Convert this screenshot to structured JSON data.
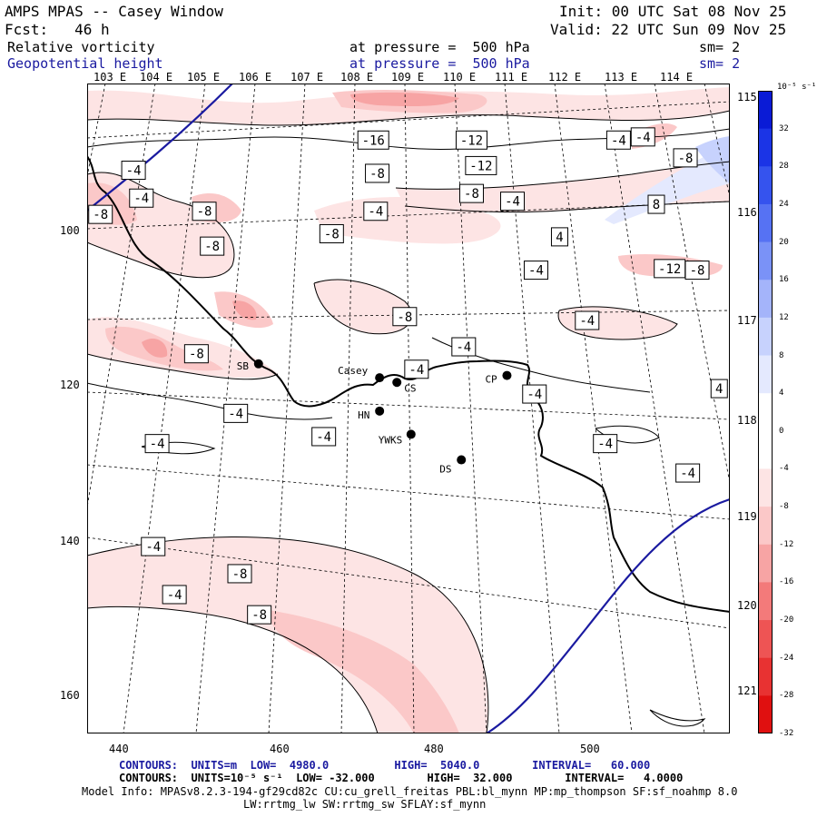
{
  "header": {
    "title": "AMPS MPAS -- Casey Window",
    "init": "Init: 00 UTC Sat 08 Nov 25",
    "forecast": "Fcst:   46 h",
    "valid": "Valid: 22 UTC Sun 09 Nov 25",
    "field1": {
      "name": "Relative vorticity",
      "level": "at pressure =  500 hPa",
      "smooth": "sm= 2"
    },
    "field2": {
      "name": "Geopotential height",
      "level": "at pressure =  500 hPa",
      "smooth": "sm= 2"
    }
  },
  "top_lon_labels": [
    "103 E",
    "104 E",
    "105 E",
    "106 E",
    "107 E",
    "108 E",
    "109 E",
    "110 E",
    "111 E",
    "112 E",
    "113 E",
    "114 E"
  ],
  "right_lat_labels": [
    "115 E",
    "116 E",
    "117 E",
    "118 E",
    "119 E",
    "120 E",
    "121 E"
  ],
  "x_axis": {
    "ticks": [
      "440",
      "460",
      "480",
      "500"
    ]
  },
  "y_axis": {
    "ticks": [
      "100",
      "120",
      "140",
      "160"
    ]
  },
  "colorbar": {
    "units": "10⁻⁵ s⁻¹",
    "labels": [
      "32",
      "28",
      "24",
      "20",
      "16",
      "12",
      "8",
      "4",
      "0",
      "-4",
      "-8",
      "-12",
      "-16",
      "-20",
      "-24",
      "-28",
      "-32"
    ],
    "colors": [
      "#0a1bd6",
      "#1b34e6",
      "#3553ee",
      "#5672f3",
      "#7a92f7",
      "#a4b4fa",
      "#c7d2fd",
      "#e4e9fe",
      "#ffffff",
      "#ffffff",
      "#fde4e4",
      "#fbc8c8",
      "#f7a4a4",
      "#f37a7a",
      "#ee5454",
      "#e83232",
      "#e01010"
    ]
  },
  "stations": [
    {
      "name": "SB",
      "x": 456.9,
      "y": 117.6
    },
    {
      "name": "Casey",
      "x": 472.3,
      "y": 119.4
    },
    {
      "name": "CS",
      "x": 474.5,
      "y": 120.0
    },
    {
      "name": "CP",
      "x": 488.5,
      "y": 119.1
    },
    {
      "name": "HN",
      "x": 472.3,
      "y": 123.7
    },
    {
      "name": "YWKS",
      "x": 476.3,
      "y": 126.7
    },
    {
      "name": "DS",
      "x": 482.7,
      "y": 130.0
    }
  ],
  "contour_labels": [
    {
      "text": "-16",
      "x": 471.5,
      "y": 88.7
    },
    {
      "text": "-12",
      "x": 484.0,
      "y": 88.7
    },
    {
      "text": "-4",
      "x": 502.7,
      "y": 88.7
    },
    {
      "text": "-4",
      "x": 505.8,
      "y": 88.3
    },
    {
      "text": "-8",
      "x": 511.2,
      "y": 91.0
    },
    {
      "text": "-4",
      "x": 441.0,
      "y": 92.6
    },
    {
      "text": "-12",
      "x": 485.2,
      "y": 92.0
    },
    {
      "text": "-8",
      "x": 472.0,
      "y": 93.0
    },
    {
      "text": "-4",
      "x": 442.0,
      "y": 96.2
    },
    {
      "text": "-8",
      "x": 484.0,
      "y": 95.6
    },
    {
      "text": "-4",
      "x": 489.2,
      "y": 96.6
    },
    {
      "text": "8",
      "x": 507.5,
      "y": 97.0
    },
    {
      "text": "-8",
      "x": 436.8,
      "y": 98.3
    },
    {
      "text": "-8",
      "x": 450.0,
      "y": 97.9
    },
    {
      "text": "-4",
      "x": 471.8,
      "y": 97.9
    },
    {
      "text": "-8",
      "x": 466.2,
      "y": 100.8
    },
    {
      "text": "4",
      "x": 495.2,
      "y": 101.2
    },
    {
      "text": "-8",
      "x": 451.0,
      "y": 102.4
    },
    {
      "text": "-12",
      "x": 509.2,
      "y": 105.3
    },
    {
      "text": "-8",
      "x": 512.7,
      "y": 105.5
    },
    {
      "text": "-4",
      "x": 492.2,
      "y": 105.5
    },
    {
      "text": "-8",
      "x": 475.5,
      "y": 111.5
    },
    {
      "text": "-4",
      "x": 498.7,
      "y": 112.0
    },
    {
      "text": "-4",
      "x": 483.0,
      "y": 115.4
    },
    {
      "text": "-8",
      "x": 449.0,
      "y": 116.3
    },
    {
      "text": "-4",
      "x": 477.0,
      "y": 118.3
    },
    {
      "text": "-4",
      "x": 492.0,
      "y": 121.5
    },
    {
      "text": "4",
      "x": 515.5,
      "y": 120.8
    },
    {
      "text": "-4",
      "x": 454.0,
      "y": 124.0
    },
    {
      "text": "-4",
      "x": 465.2,
      "y": 127.0
    },
    {
      "text": "-4",
      "x": 444.0,
      "y": 127.9
    },
    {
      "text": "-4",
      "x": 501.0,
      "y": 127.9
    },
    {
      "text": "-4",
      "x": 511.5,
      "y": 131.7
    },
    {
      "text": "-4",
      "x": 443.5,
      "y": 141.2
    },
    {
      "text": "-8",
      "x": 454.5,
      "y": 144.7
    },
    {
      "text": "-4",
      "x": 446.2,
      "y": 147.4
    },
    {
      "text": "-8",
      "x": 457.0,
      "y": 150.0
    }
  ],
  "footer": {
    "line1": "CONTOURS:  UNITS=m  LOW=  4980.0          HIGH=  5040.0        INTERVAL=   60.000",
    "line2": "CONTOURS:  UNITS=10⁻⁵ s⁻¹  LOW= -32.000        HIGH=  32.000        INTERVAL=   4.0000",
    "line3": "Model Info: MPASv8.2.3-194-gf29cd82c CU:cu_grell_freitas PBL:bl_mynn MP:mp_thompson SF:sf_noahmp 8.0",
    "line4": "LW:rrtmg_lw SW:rrtmg_sw SFLAY:sf_mynn"
  }
}
